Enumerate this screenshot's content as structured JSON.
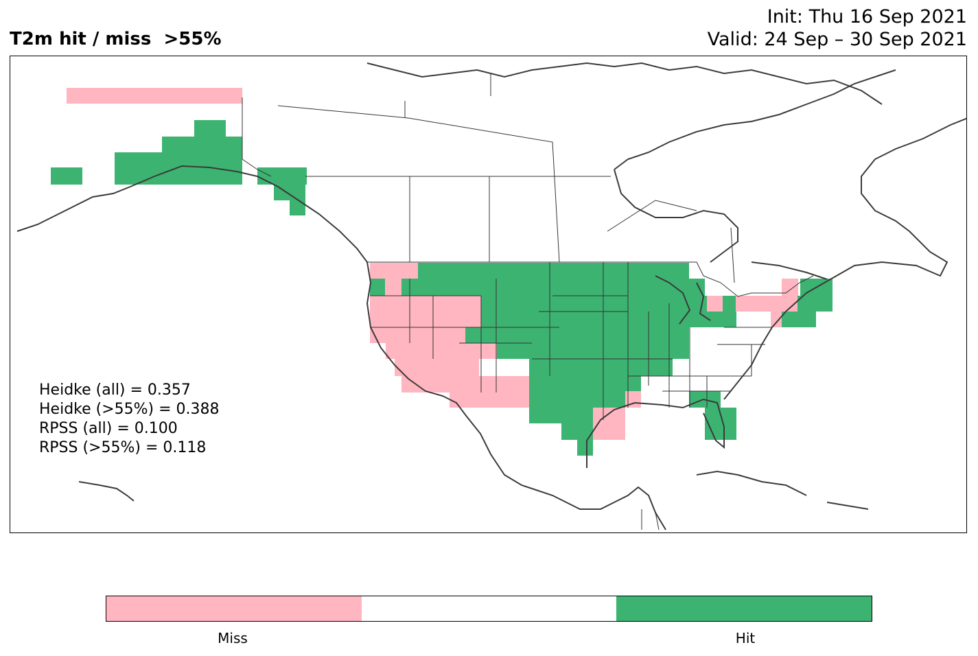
{
  "title": {
    "left": "T2m hit / miss  >55%",
    "init": "Init: Thu 16 Sep 2021",
    "valid": "Valid: 24 Sep – 30 Sep 2021"
  },
  "stats": {
    "heidke_all": "Heidke (all) = 0.357",
    "heidke_55": "Heidke (>55%) = 0.388",
    "rpss_all": "RPSS (all) = 0.100",
    "rpss_55": "RPSS (>55%) = 0.118"
  },
  "colorbar": {
    "segments": [
      {
        "label": "Miss",
        "color": "#ffb6c1"
      },
      {
        "label": "",
        "color": "#ffffff"
      },
      {
        "label": "Hit",
        "color": "#3cb371"
      }
    ],
    "miss_label": "Miss",
    "hit_label": "Hit"
  },
  "colors": {
    "miss": "#ffb6c1",
    "hit": "#3cb371",
    "coast": "#3a3a3a",
    "border": "#333333"
  }
}
